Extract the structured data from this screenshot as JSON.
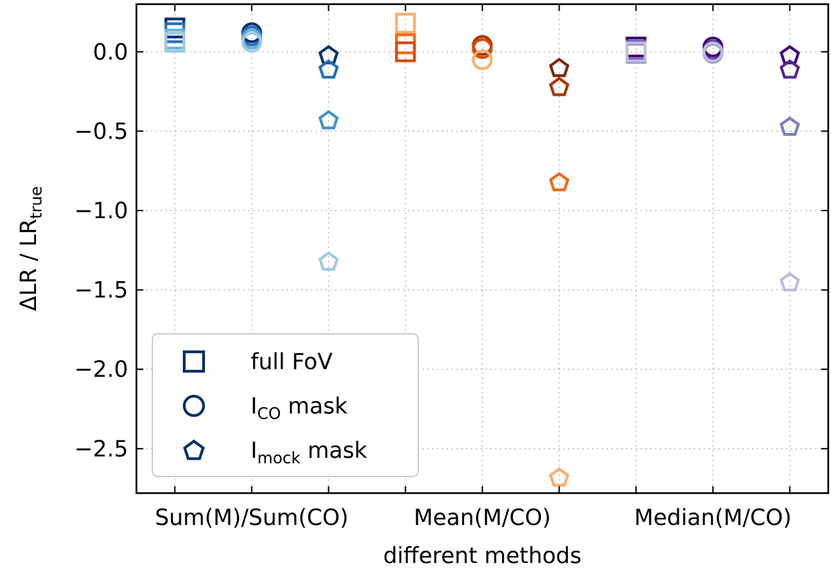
{
  "chart_data": {
    "type": "scatter",
    "xlabel": "different methods",
    "ylabel": {
      "main": "ΔLR / LR",
      "sub": "true"
    },
    "ylim": [
      -2.78,
      0.3
    ],
    "yticks": [
      0.0,
      -0.5,
      -1.0,
      -1.5,
      -2.0,
      -2.5
    ],
    "ytick_labels": [
      "0.0",
      "−0.5",
      "−1.0",
      "−1.5",
      "−2.0",
      "−2.5"
    ],
    "x_positions": [
      1,
      2,
      3,
      4,
      5,
      6,
      7,
      8,
      9
    ],
    "xlim": [
      0.5,
      9.5
    ],
    "x_tick_labels": [
      {
        "at": 2,
        "text": "Sum(M)/Sum(CO)"
      },
      {
        "at": 5,
        "text": "Mean(M/CO)"
      },
      {
        "at": 8,
        "text": "Median(M/CO)"
      }
    ],
    "grid": true,
    "legend": {
      "placement": "lower-left",
      "entries": [
        {
          "marker": "square",
          "label": "full FoV",
          "sub": ""
        },
        {
          "marker": "circle",
          "label": "I",
          "sub": "CO",
          "suffix": " mask"
        },
        {
          "marker": "pentagon",
          "label": "I",
          "sub": "mock",
          "suffix": " mask"
        }
      ],
      "color": "#08306b"
    },
    "points": [
      {
        "x": 1,
        "y": 0.15,
        "marker": "square",
        "color": "#08306b"
      },
      {
        "x": 1,
        "y": 0.12,
        "marker": "square",
        "color": "#2171b5"
      },
      {
        "x": 1,
        "y": 0.08,
        "marker": "square",
        "color": "#6baed6"
      },
      {
        "x": 1,
        "y": 0.06,
        "marker": "square",
        "color": "#9ecae1"
      },
      {
        "x": 2,
        "y": 0.12,
        "marker": "circle",
        "color": "#08306b"
      },
      {
        "x": 2,
        "y": 0.1,
        "marker": "circle",
        "color": "#2171b5"
      },
      {
        "x": 2,
        "y": 0.08,
        "marker": "circle",
        "color": "#6baed6"
      },
      {
        "x": 2,
        "y": 0.06,
        "marker": "circle",
        "color": "#9ecae1"
      },
      {
        "x": 3,
        "y": -0.02,
        "marker": "pentagon",
        "color": "#08306b"
      },
      {
        "x": 3,
        "y": -0.11,
        "marker": "pentagon",
        "color": "#2171b5"
      },
      {
        "x": 3,
        "y": -0.43,
        "marker": "pentagon",
        "color": "#4292c6"
      },
      {
        "x": 3,
        "y": -1.32,
        "marker": "pentagon",
        "color": "#9ecae1"
      },
      {
        "x": 4,
        "y": 0.18,
        "marker": "square",
        "color": "#fdae6b"
      },
      {
        "x": 4,
        "y": 0.05,
        "marker": "square",
        "color": "#f16913"
      },
      {
        "x": 4,
        "y": 0.0,
        "marker": "square",
        "color": "#d94801"
      },
      {
        "x": 5,
        "y": 0.04,
        "marker": "circle",
        "color": "#a63603"
      },
      {
        "x": 5,
        "y": 0.02,
        "marker": "circle",
        "color": "#d94801"
      },
      {
        "x": 5,
        "y": -0.05,
        "marker": "circle",
        "color": "#fdae6b"
      },
      {
        "x": 6,
        "y": -0.1,
        "marker": "pentagon",
        "color": "#7f2704"
      },
      {
        "x": 6,
        "y": -0.22,
        "marker": "pentagon",
        "color": "#a63603"
      },
      {
        "x": 6,
        "y": -0.82,
        "marker": "pentagon",
        "color": "#f16913"
      },
      {
        "x": 6,
        "y": -2.68,
        "marker": "pentagon",
        "color": "#fdae6b"
      },
      {
        "x": 7,
        "y": 0.03,
        "marker": "square",
        "color": "#3f007d"
      },
      {
        "x": 7,
        "y": 0.01,
        "marker": "square",
        "color": "#6a51a3"
      },
      {
        "x": 7,
        "y": -0.01,
        "marker": "square",
        "color": "#9e9ac8"
      },
      {
        "x": 7,
        "y": 0.0,
        "marker": "square",
        "color": "#bcbddc"
      },
      {
        "x": 8,
        "y": 0.03,
        "marker": "circle",
        "color": "#3f007d"
      },
      {
        "x": 8,
        "y": 0.01,
        "marker": "circle",
        "color": "#54278f"
      },
      {
        "x": 8,
        "y": -0.01,
        "marker": "circle",
        "color": "#9e9ac8"
      },
      {
        "x": 8,
        "y": 0.0,
        "marker": "circle",
        "color": "#bcbddc"
      },
      {
        "x": 9,
        "y": -0.02,
        "marker": "pentagon",
        "color": "#3f007d"
      },
      {
        "x": 9,
        "y": -0.11,
        "marker": "pentagon",
        "color": "#54278f"
      },
      {
        "x": 9,
        "y": -0.47,
        "marker": "pentagon",
        "color": "#807dba"
      },
      {
        "x": 9,
        "y": -1.45,
        "marker": "pentagon",
        "color": "#bcbddc"
      }
    ]
  }
}
